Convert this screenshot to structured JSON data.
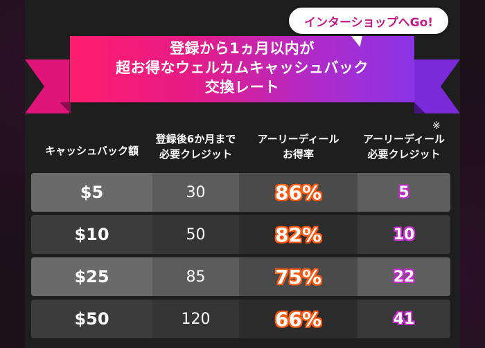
{
  "banner": {
    "line1": "登録から1ヵ月以内が",
    "line2": "超お得なウェルカムキャッシュバック",
    "line3": "交換レート",
    "gradient_start": "#ff1d6e",
    "gradient_end": "#8a34e6"
  },
  "bubble": {
    "label": "インターショップへGo!",
    "text_color": "#c21a86"
  },
  "table": {
    "headers": {
      "amount": "キャッシュバック額",
      "credit_line1": "登録後6か月まで",
      "credit_line2": "必要クレジット",
      "rate_line1": "アーリーディール",
      "rate_line2": "お得率",
      "early_line1": "アーリーディール",
      "early_line2": "必要クレジット",
      "note_mark": "※"
    },
    "rows": [
      {
        "amount": "$5",
        "credit": "30",
        "rate": "86%",
        "early": "5"
      },
      {
        "amount": "$10",
        "credit": "50",
        "rate": "82%",
        "early": "10"
      },
      {
        "amount": "$25",
        "credit": "85",
        "rate": "75%",
        "early": "22"
      },
      {
        "amount": "$50",
        "credit": "120",
        "rate": "66%",
        "early": "41"
      }
    ]
  },
  "colors": {
    "rate_outline": "#ff5a10",
    "early_outline": "#c02cc8"
  }
}
